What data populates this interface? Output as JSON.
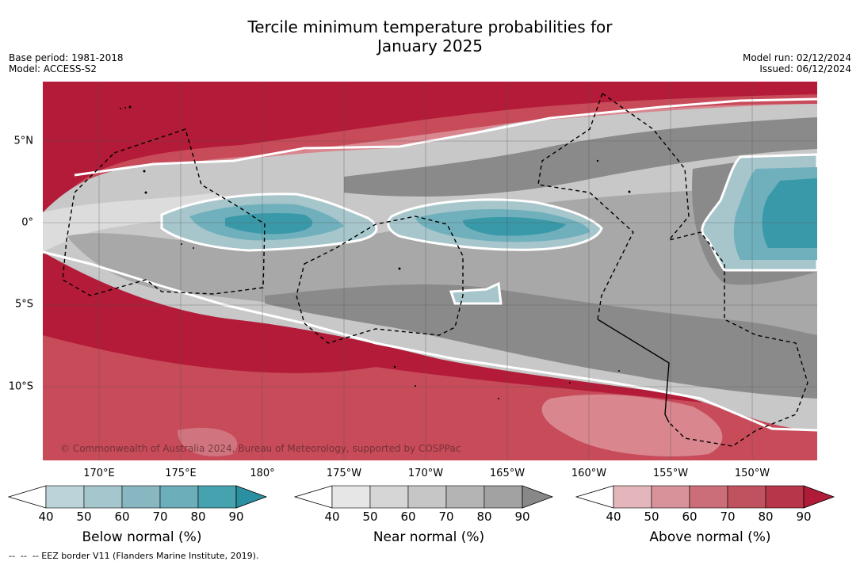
{
  "title_line1": "Tercile minimum temperature probabilities for",
  "title_line2": "January 2025",
  "base_period": "Base period: 1981-2018",
  "model": "Model: ACCESS-S2",
  "model_run": "Model run: 02/12/2024",
  "issued": "Issued: 06/12/2024",
  "map": {
    "lat_labels": [
      "5°N",
      "0°",
      "5°S",
      "10°S"
    ],
    "lon_labels": [
      "170°E",
      "175°E",
      "180°",
      "175°W",
      "170°W",
      "165°W",
      "160°W",
      "155°W",
      "150°W"
    ],
    "copyright": "© Commonwealth of Australia 2024, Bureau of Meteorology, supported by COSPPac",
    "colors": {
      "above_deep": "#b31b38",
      "above_mid": "#c84b5a",
      "above_light": "#d9868f",
      "near_dark": "#8a8a8a",
      "near_mid": "#a8a8a8",
      "near_light": "#c8c8c8",
      "near_pale": "#dcdcdc",
      "below_light": "#a6c6cc",
      "below_mid": "#6fb0bc",
      "below_deep": "#3a99a8"
    }
  },
  "colorbars": {
    "ticks": [
      "40",
      "50",
      "60",
      "70",
      "80",
      "90"
    ],
    "below": {
      "title": "Below normal (%)",
      "colors": [
        "#bcd3d9",
        "#a5c6cc",
        "#89b7c1",
        "#6caeb9",
        "#47a2b0",
        "#2a8fa0"
      ]
    },
    "near": {
      "title": "Near normal (%)",
      "colors": [
        "#e6e6e6",
        "#d6d6d6",
        "#c6c6c6",
        "#b4b4b4",
        "#a2a2a2",
        "#888888"
      ]
    },
    "above": {
      "title": "Above normal (%)",
      "colors": [
        "#e3b6bb",
        "#d8929a",
        "#cb6e79",
        "#c0525f",
        "#b7364a",
        "#b01c38"
      ]
    }
  },
  "footnote": "--  --  -- EEZ border V11 (Flanders Marine Institute, 2019)."
}
